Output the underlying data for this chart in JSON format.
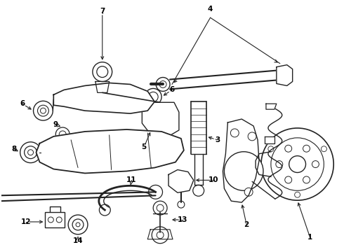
{
  "background_color": "#ffffff",
  "line_color": "#222222",
  "label_color": "#000000",
  "fig_width": 4.9,
  "fig_height": 3.6,
  "dpi": 100,
  "label_fontsize": 7.5,
  "label_fontweight": "bold"
}
